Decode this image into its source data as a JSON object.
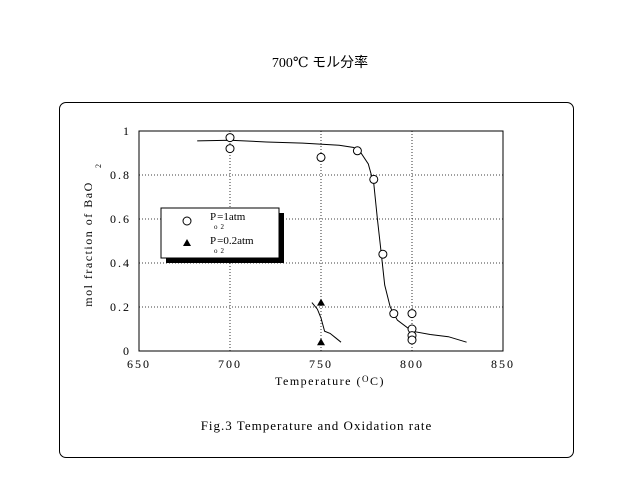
{
  "page": {
    "title": "700℃ モル分率"
  },
  "caption": "Fig.3 Temperature and Oxidation rate",
  "chart_data": {
    "type": "scatter",
    "xlabel": "Temperature (℃)",
    "ylabel": "mol fraction of BaO2",
    "xlim": [
      650,
      850
    ],
    "ylim": [
      0,
      1
    ],
    "x_ticks": [
      650,
      700,
      750,
      800,
      850
    ],
    "y_ticks": [
      0,
      0.2,
      0.4,
      0.6,
      0.8,
      1
    ],
    "x_tick_labels": [
      "650",
      "700",
      "750",
      "800",
      "850"
    ],
    "y_tick_labels": [
      "0",
      "0.2",
      "0.4",
      "0.6",
      "0.8",
      "1"
    ],
    "grid": true,
    "legend_placement": "center-left",
    "series": [
      {
        "name": "Po2=1atm",
        "marker": "open-circle",
        "points": [
          [
            700,
            0.97
          ],
          [
            700,
            0.92
          ],
          [
            750,
            0.88
          ],
          [
            770,
            0.91
          ],
          [
            779,
            0.78
          ],
          [
            784,
            0.44
          ],
          [
            790,
            0.17
          ],
          [
            800,
            0.17
          ],
          [
            800,
            0.1
          ],
          [
            800,
            0.07
          ],
          [
            800,
            0.05
          ]
        ],
        "fit_curve": [
          [
            682,
            0.955
          ],
          [
            700,
            0.958
          ],
          [
            720,
            0.95
          ],
          [
            740,
            0.945
          ],
          [
            760,
            0.935
          ],
          [
            768,
            0.925
          ],
          [
            772,
            0.9
          ],
          [
            776,
            0.85
          ],
          [
            779,
            0.76
          ],
          [
            781,
            0.6
          ],
          [
            783,
            0.45
          ],
          [
            785,
            0.3
          ],
          [
            788,
            0.2
          ],
          [
            792,
            0.14
          ],
          [
            800,
            0.09
          ],
          [
            810,
            0.075
          ],
          [
            820,
            0.065
          ],
          [
            830,
            0.04
          ]
        ]
      },
      {
        "name": "Po2=0.2atm",
        "marker": "filled-triangle",
        "points": [
          [
            750,
            0.22
          ],
          [
            750,
            0.04
          ]
        ],
        "fit_curve": [
          [
            745,
            0.22
          ],
          [
            748,
            0.19
          ],
          [
            750,
            0.15
          ],
          [
            752,
            0.09
          ],
          [
            755,
            0.08
          ],
          [
            758,
            0.06
          ],
          [
            761,
            0.04
          ]
        ]
      }
    ],
    "legend": [
      {
        "symbol": "open-circle",
        "prefix": "P",
        "sub": "o2",
        "value": "=1atm"
      },
      {
        "symbol": "filled-triangle",
        "prefix": "P",
        "sub": "o2",
        "value": "=0.2atm"
      }
    ],
    "axis_label_parts": {
      "ylabel_main": "mol fraction of BaO",
      "ylabel_sub": "2",
      "xlabel_main": "Temperature (",
      "xlabel_unit_o": "O",
      "xlabel_unit_c": "C)"
    }
  }
}
